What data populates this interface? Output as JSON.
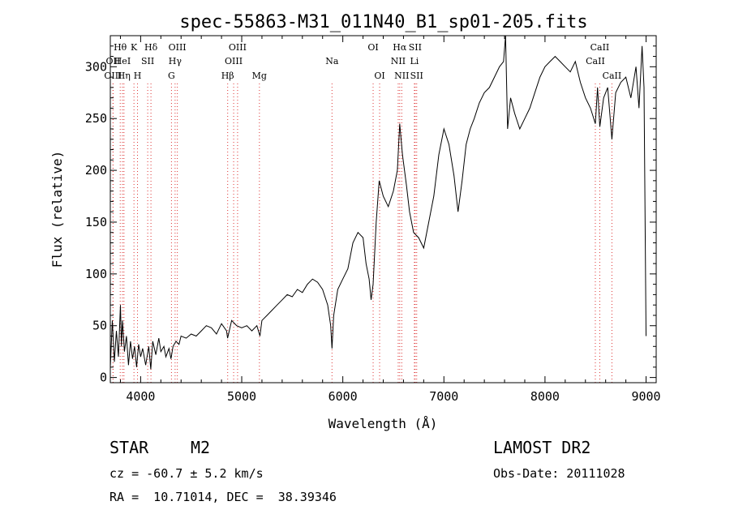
{
  "chart_data": {
    "type": "line",
    "title": "spec-55863-M31_011N40_B1_sp01-205.fits",
    "xlabel": "Wavelength (Å)",
    "ylabel": "Flux (relative)",
    "xlim": [
      3700,
      9100
    ],
    "ylim": [
      -5,
      330
    ],
    "xticks": [
      4000,
      5000,
      6000,
      7000,
      8000,
      9000
    ],
    "yticks": [
      0,
      50,
      100,
      150,
      200,
      250,
      300
    ],
    "grid": false,
    "series": [
      {
        "color": "#000000",
        "points": [
          [
            3700,
            10
          ],
          [
            3720,
            55
          ],
          [
            3740,
            15
          ],
          [
            3760,
            45
          ],
          [
            3780,
            20
          ],
          [
            3800,
            70
          ],
          [
            3810,
            30
          ],
          [
            3820,
            55
          ],
          [
            3840,
            25
          ],
          [
            3860,
            40
          ],
          [
            3880,
            12
          ],
          [
            3900,
            35
          ],
          [
            3920,
            18
          ],
          [
            3940,
            30
          ],
          [
            3960,
            10
          ],
          [
            3980,
            32
          ],
          [
            4000,
            20
          ],
          [
            4020,
            28
          ],
          [
            4050,
            12
          ],
          [
            4080,
            30
          ],
          [
            4100,
            8
          ],
          [
            4120,
            35
          ],
          [
            4150,
            22
          ],
          [
            4180,
            38
          ],
          [
            4200,
            25
          ],
          [
            4230,
            30
          ],
          [
            4250,
            20
          ],
          [
            4280,
            28
          ],
          [
            4300,
            18
          ],
          [
            4320,
            30
          ],
          [
            4350,
            35
          ],
          [
            4380,
            32
          ],
          [
            4400,
            40
          ],
          [
            4450,
            38
          ],
          [
            4500,
            42
          ],
          [
            4550,
            40
          ],
          [
            4600,
            45
          ],
          [
            4650,
            50
          ],
          [
            4700,
            48
          ],
          [
            4750,
            42
          ],
          [
            4800,
            52
          ],
          [
            4850,
            45
          ],
          [
            4860,
            38
          ],
          [
            4900,
            55
          ],
          [
            4950,
            50
          ],
          [
            5000,
            48
          ],
          [
            5050,
            50
          ],
          [
            5100,
            45
          ],
          [
            5150,
            50
          ],
          [
            5180,
            40
          ],
          [
            5200,
            55
          ],
          [
            5250,
            60
          ],
          [
            5300,
            65
          ],
          [
            5350,
            70
          ],
          [
            5400,
            75
          ],
          [
            5450,
            80
          ],
          [
            5500,
            78
          ],
          [
            5550,
            85
          ],
          [
            5600,
            82
          ],
          [
            5650,
            90
          ],
          [
            5700,
            95
          ],
          [
            5750,
            92
          ],
          [
            5800,
            85
          ],
          [
            5850,
            70
          ],
          [
            5880,
            50
          ],
          [
            5893,
            28
          ],
          [
            5910,
            60
          ],
          [
            5950,
            85
          ],
          [
            6000,
            95
          ],
          [
            6050,
            105
          ],
          [
            6100,
            130
          ],
          [
            6150,
            140
          ],
          [
            6200,
            135
          ],
          [
            6230,
            110
          ],
          [
            6260,
            95
          ],
          [
            6280,
            75
          ],
          [
            6300,
            90
          ],
          [
            6330,
            150
          ],
          [
            6360,
            190
          ],
          [
            6400,
            175
          ],
          [
            6450,
            165
          ],
          [
            6500,
            180
          ],
          [
            6540,
            200
          ],
          [
            6563,
            245
          ],
          [
            6590,
            215
          ],
          [
            6630,
            185
          ],
          [
            6660,
            160
          ],
          [
            6700,
            140
          ],
          [
            6750,
            135
          ],
          [
            6800,
            125
          ],
          [
            6850,
            150
          ],
          [
            6900,
            175
          ],
          [
            6950,
            215
          ],
          [
            7000,
            240
          ],
          [
            7050,
            225
          ],
          [
            7100,
            195
          ],
          [
            7140,
            160
          ],
          [
            7180,
            190
          ],
          [
            7220,
            225
          ],
          [
            7260,
            240
          ],
          [
            7300,
            250
          ],
          [
            7350,
            265
          ],
          [
            7400,
            275
          ],
          [
            7450,
            280
          ],
          [
            7500,
            290
          ],
          [
            7550,
            300
          ],
          [
            7590,
            305
          ],
          [
            7610,
            330
          ],
          [
            7630,
            240
          ],
          [
            7660,
            270
          ],
          [
            7700,
            255
          ],
          [
            7750,
            240
          ],
          [
            7800,
            250
          ],
          [
            7850,
            260
          ],
          [
            7900,
            275
          ],
          [
            7950,
            290
          ],
          [
            8000,
            300
          ],
          [
            8050,
            305
          ],
          [
            8100,
            310
          ],
          [
            8150,
            305
          ],
          [
            8200,
            300
          ],
          [
            8250,
            295
          ],
          [
            8300,
            305
          ],
          [
            8350,
            285
          ],
          [
            8400,
            270
          ],
          [
            8450,
            260
          ],
          [
            8498,
            245
          ],
          [
            8520,
            280
          ],
          [
            8542,
            242
          ],
          [
            8580,
            270
          ],
          [
            8620,
            280
          ],
          [
            8662,
            230
          ],
          [
            8700,
            275
          ],
          [
            8750,
            285
          ],
          [
            8800,
            290
          ],
          [
            8850,
            270
          ],
          [
            8900,
            300
          ],
          [
            8930,
            260
          ],
          [
            8960,
            320
          ],
          [
            8980,
            280
          ],
          [
            9000,
            40
          ]
        ]
      }
    ],
    "lines": [
      {
        "label": "Hθ",
        "x": 3798,
        "row": 0
      },
      {
        "label": "K",
        "x": 3934,
        "row": 0
      },
      {
        "label": "Hδ",
        "x": 4102,
        "row": 0
      },
      {
        "label": "OII",
        "x": 3727,
        "row": 1
      },
      {
        "label": "HeI",
        "x": 3820,
        "row": 1
      },
      {
        "label": "SII",
        "x": 4070,
        "row": 1
      },
      {
        "label": "OIII",
        "x": 3727,
        "row": 2
      },
      {
        "label": "Hη",
        "x": 3835,
        "row": 2
      },
      {
        "label": "H",
        "x": 3969,
        "row": 2
      },
      {
        "label": "OIII",
        "x": 4363,
        "row": 0
      },
      {
        "label": "Hγ",
        "x": 4341,
        "row": 1
      },
      {
        "label": "G",
        "x": 4305,
        "row": 2
      },
      {
        "label": "OIII",
        "x": 4959,
        "row": 0
      },
      {
        "label": "OIII",
        "x": 4920,
        "row": 1
      },
      {
        "label": "Hβ",
        "x": 4861,
        "row": 2
      },
      {
        "label": "Mg",
        "x": 5175,
        "row": 2
      },
      {
        "label": "Na",
        "x": 5893,
        "row": 1
      },
      {
        "label": "OI",
        "x": 6300,
        "row": 0
      },
      {
        "label": "OI",
        "x": 6364,
        "row": 2
      },
      {
        "label": "Hα",
        "x": 6563,
        "row": 0
      },
      {
        "label": "SII",
        "x": 6716,
        "row": 0
      },
      {
        "label": "NII",
        "x": 6548,
        "row": 1
      },
      {
        "label": "Li",
        "x": 6708,
        "row": 1
      },
      {
        "label": "NII",
        "x": 6583,
        "row": 2
      },
      {
        "label": "SII",
        "x": 6731,
        "row": 2
      },
      {
        "label": "CaII",
        "x": 8542,
        "row": 0
      },
      {
        "label": "CaII",
        "x": 8498,
        "row": 1
      },
      {
        "label": "CaII",
        "x": 8662,
        "row": 2
      }
    ]
  },
  "info": {
    "star_type": "STAR",
    "star_subclass": "M2",
    "survey": "LAMOST DR2",
    "cz": "cz = -60.7 ± 5.2 km/s",
    "obs_date": "Obs-Date: 20111028",
    "radec": "RA =  10.71014, DEC =  38.39346"
  }
}
